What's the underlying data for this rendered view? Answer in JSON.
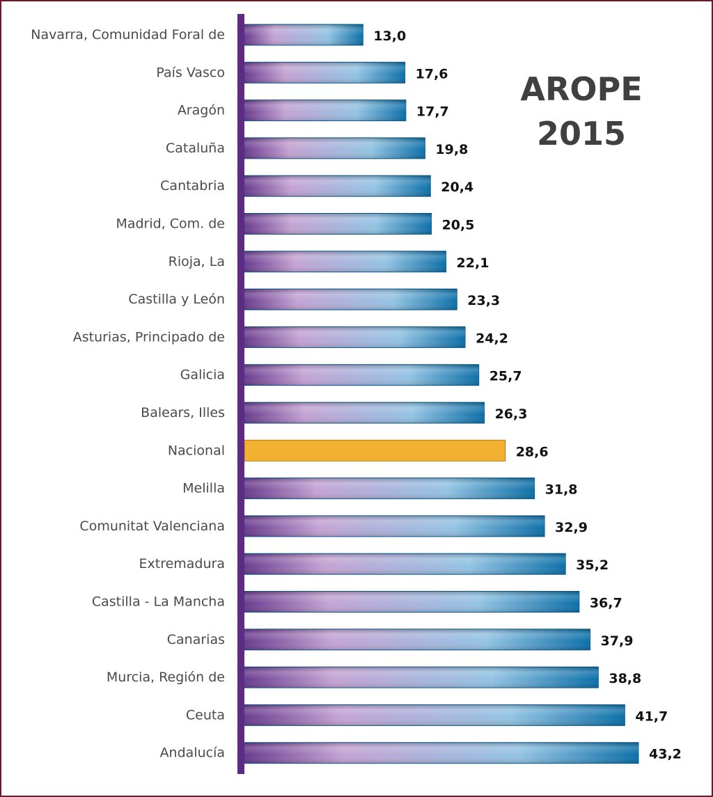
{
  "chart_data": {
    "type": "bar",
    "orientation": "horizontal",
    "title_lines": [
      "AROPE",
      "2015"
    ],
    "categories": [
      "Navarra, Comunidad Foral de",
      "País Vasco",
      "Aragón",
      "Cataluña",
      "Cantabria",
      "Madrid, Com. de",
      "Rioja, La",
      "Castilla y León",
      "Asturias, Principado de",
      "Galicia",
      "Balears, Illes",
      "Nacional",
      "Melilla",
      "Comunitat Valenciana",
      "Extremadura",
      "Castilla - La Mancha",
      "Canarias",
      "Murcia, Región de",
      "Ceuta",
      "Andalucía"
    ],
    "values": [
      13.0,
      17.6,
      17.7,
      19.8,
      20.4,
      20.5,
      22.1,
      23.3,
      24.2,
      25.7,
      26.3,
      28.6,
      31.8,
      32.9,
      35.2,
      36.7,
      37.9,
      38.8,
      41.7,
      43.2
    ],
    "value_labels": [
      "13,0",
      "17,6",
      "17,7",
      "19,8",
      "20,4",
      "20,5",
      "22,1",
      "23,3",
      "24,2",
      "25,7",
      "26,3",
      "28,6",
      "31,8",
      "32,9",
      "35,2",
      "36,7",
      "37,9",
      "38,8",
      "41,7",
      "43,2"
    ],
    "highlight_category": "Nacional",
    "xlim": [
      0,
      43.2
    ],
    "grid": false,
    "legend": "none",
    "colors": {
      "gradient_start": "#6a3b8e",
      "gradient_mid": "#c4a3d3",
      "gradient_light": "#93c3e3",
      "gradient_end": "#0b6fa8",
      "highlight": "#f3b132",
      "highlight_border": "#b07a10",
      "axis": "#5e2a83",
      "frame": "#6b1a2a"
    }
  }
}
